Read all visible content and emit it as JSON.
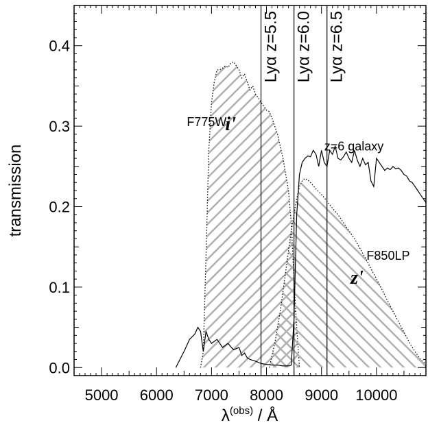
{
  "chart_data": {
    "type": "area",
    "title": "",
    "xlabel": "λ(obs) / Å",
    "xlabel_parts": {
      "symbol": "λ",
      "superscript": "(obs)",
      "unit": " / Å"
    },
    "ylabel": "transmission",
    "xlim": [
      4500,
      10900
    ],
    "ylim": [
      -0.01,
      0.45
    ],
    "x_ticks": [
      5000,
      6000,
      7000,
      8000,
      9000,
      10000
    ],
    "x_tick_labels": [
      "5000",
      "6000",
      "7000",
      "8000",
      "9000",
      "10000"
    ],
    "y_ticks": [
      0.0,
      0.1,
      0.2,
      0.3,
      0.4
    ],
    "y_tick_labels": [
      "0.0",
      "0.1",
      "0.2",
      "0.3",
      "0.4"
    ],
    "grid": false,
    "series": [
      {
        "name": "i'",
        "style": "hatched-dotted",
        "color": "#000000",
        "hatch_color": "#b0b0b0",
        "x": [
          6800,
          6850,
          6900,
          6950,
          7000,
          7050,
          7100,
          7150,
          7200,
          7250,
          7300,
          7350,
          7400,
          7450,
          7500,
          7550,
          7600,
          7650,
          7700,
          7750,
          7800,
          7850,
          7900,
          7950,
          8000,
          8050,
          8100,
          8150,
          8200,
          8250,
          8300,
          8350,
          8400,
          8450,
          8500,
          8550,
          8600
        ],
        "values": [
          0.0,
          0.02,
          0.14,
          0.27,
          0.33,
          0.355,
          0.37,
          0.37,
          0.372,
          0.375,
          0.373,
          0.378,
          0.38,
          0.375,
          0.37,
          0.36,
          0.365,
          0.355,
          0.345,
          0.35,
          0.34,
          0.335,
          0.33,
          0.325,
          0.32,
          0.318,
          0.31,
          0.3,
          0.29,
          0.275,
          0.26,
          0.24,
          0.22,
          0.18,
          0.11,
          0.05,
          0.0
        ]
      },
      {
        "name": "z'",
        "style": "hatched-dotted",
        "color": "#000000",
        "hatch_color": "#b0b0b0",
        "x": [
          8050,
          8150,
          8250,
          8350,
          8450,
          8500,
          8550,
          8600,
          8650,
          8700,
          8750,
          8800,
          8900,
          9000,
          9100,
          9200,
          9300,
          9400,
          9500,
          9600,
          9700,
          9800,
          9900,
          10000,
          10100,
          10200,
          10300,
          10400,
          10500,
          10600,
          10700,
          10800,
          10900
        ],
        "values": [
          0.0,
          0.03,
          0.07,
          0.12,
          0.17,
          0.19,
          0.21,
          0.225,
          0.232,
          0.235,
          0.233,
          0.23,
          0.222,
          0.215,
          0.207,
          0.198,
          0.19,
          0.18,
          0.17,
          0.16,
          0.148,
          0.136,
          0.123,
          0.11,
          0.097,
          0.083,
          0.07,
          0.057,
          0.044,
          0.031,
          0.02,
          0.01,
          0.004
        ]
      },
      {
        "name": "z=6 galaxy",
        "style": "solid",
        "color": "#000000",
        "x": [
          6350,
          6500,
          6600,
          6700,
          6750,
          6800,
          6850,
          6900,
          6950,
          7000,
          7100,
          7200,
          7300,
          7400,
          7500,
          7550,
          7600,
          7650,
          7700,
          7800,
          7900,
          8000,
          8100,
          8200,
          8300,
          8400,
          8450,
          8500,
          8550,
          8600,
          8650,
          8700,
          8750,
          8800,
          8850,
          8900,
          8950,
          9000,
          9050,
          9100,
          9150,
          9200,
          9250,
          9300,
          9350,
          9400,
          9450,
          9500,
          9550,
          9600,
          9650,
          9700,
          9750,
          9800,
          9850,
          9900,
          9950,
          10000,
          10050,
          10100,
          10150,
          10200,
          10250,
          10300,
          10350,
          10400,
          10450,
          10500,
          10550,
          10600,
          10650,
          10700,
          10750,
          10800,
          10850,
          10900
        ],
        "values": [
          0.0,
          0.02,
          0.035,
          0.042,
          0.05,
          0.045,
          0.02,
          0.045,
          0.035,
          0.03,
          0.035,
          0.025,
          0.03,
          0.022,
          0.025,
          0.015,
          0.018,
          0.012,
          0.01,
          0.008,
          0.005,
          0.004,
          0.003,
          0.003,
          0.002,
          0.002,
          0.003,
          0.06,
          0.19,
          0.24,
          0.255,
          0.26,
          0.263,
          0.262,
          0.27,
          0.265,
          0.25,
          0.27,
          0.255,
          0.25,
          0.27,
          0.265,
          0.275,
          0.26,
          0.258,
          0.262,
          0.268,
          0.26,
          0.255,
          0.27,
          0.258,
          0.25,
          0.26,
          0.252,
          0.255,
          0.232,
          0.225,
          0.26,
          0.255,
          0.25,
          0.245,
          0.248,
          0.246,
          0.25,
          0.247,
          0.248,
          0.245,
          0.24,
          0.238,
          0.232,
          0.23,
          0.225,
          0.22,
          0.215,
          0.21,
          0.205
        ]
      }
    ],
    "vlines": [
      {
        "x": 7900,
        "label": "Lyα z=5.5"
      },
      {
        "x": 8500,
        "label": "Lyα z=6.0"
      },
      {
        "x": 9100,
        "label": "Lyα z=6.5"
      }
    ],
    "annotations": [
      {
        "text": "F775W",
        "x": 6550,
        "y": 0.3
      },
      {
        "text": "i'",
        "x": 7250,
        "y": 0.295,
        "italic": true
      },
      {
        "text": "z=6 galaxy",
        "x": 9050,
        "y": 0.27
      },
      {
        "text": "F850LP",
        "x": 9820,
        "y": 0.134
      },
      {
        "text": "z'",
        "x": 9530,
        "y": 0.104,
        "italic": true
      }
    ]
  }
}
